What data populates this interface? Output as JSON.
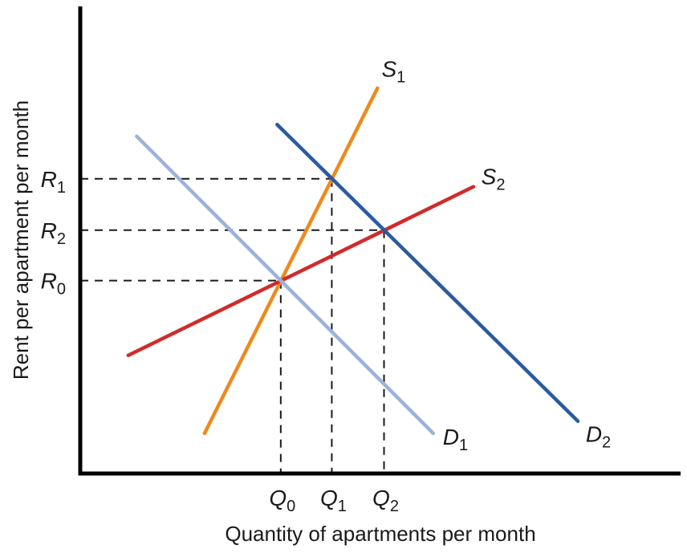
{
  "chart_data": {
    "type": "line",
    "title": "",
    "xlabel": "Quantity of apartments per month",
    "ylabel": "Rent per apartment per month",
    "xlim": [
      0,
      10
    ],
    "ylim": [
      0,
      10
    ],
    "grid": false,
    "legend": "none",
    "tick_labels": "none",
    "colors": {
      "axis": "#000000",
      "guide": "#1a1a1a",
      "text": "#1a1a1a"
    },
    "series": [
      {
        "id": "S1",
        "role": "supply",
        "label_main": "S",
        "label_sub": "1",
        "color": "#ee8a1f",
        "points": [
          [
            2.07,
            0.86
          ],
          [
            4.95,
            8.25
          ]
        ],
        "label_pos": [
          5.02,
          8.5
        ]
      },
      {
        "id": "S2",
        "role": "supply",
        "label_main": "S",
        "label_sub": "2",
        "color": "#d22a2a",
        "points": [
          [
            0.8,
            2.53
          ],
          [
            6.55,
            6.14
          ]
        ],
        "label_pos": [
          6.68,
          6.19
        ]
      },
      {
        "id": "D1",
        "role": "demand",
        "label_main": "D",
        "label_sub": "1",
        "color": "#9bb3d8",
        "points": [
          [
            0.94,
            7.22
          ],
          [
            5.88,
            0.86
          ]
        ],
        "label_pos": [
          6.04,
          0.62
        ]
      },
      {
        "id": "D2",
        "role": "demand",
        "label_main": "D",
        "label_sub": "2",
        "color": "#2a5b9e",
        "points": [
          [
            3.28,
            7.47
          ],
          [
            8.29,
            1.12
          ]
        ],
        "label_pos": [
          8.42,
          0.68
        ]
      }
    ],
    "equilibrium_points": [
      {
        "id": "E1",
        "x": 4.19,
        "y": 6.31,
        "x_label_main": "Q",
        "x_label_sub": "1",
        "y_label_main": "R",
        "y_label_sub": "1",
        "meaning": "intersection of S1 and D2"
      },
      {
        "id": "E2",
        "x": 5.06,
        "y": 5.21,
        "x_label_main": "Q",
        "x_label_sub": "2",
        "y_label_main": "R",
        "y_label_sub": "2",
        "meaning": "intersection of S2 and D2"
      },
      {
        "id": "E0",
        "x": 3.34,
        "y": 4.13,
        "x_label_main": "Q",
        "x_label_sub": "0",
        "y_label_main": "R",
        "y_label_sub": "0",
        "meaning": "intersection of S1, S2 and D1"
      }
    ]
  }
}
